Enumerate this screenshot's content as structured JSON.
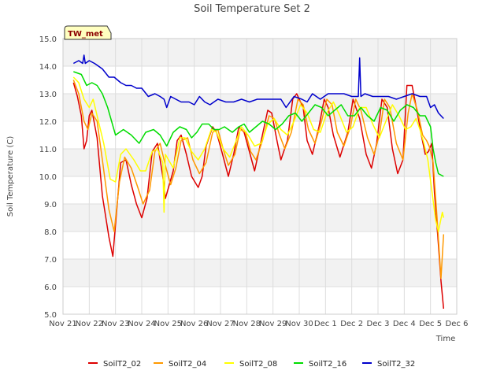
{
  "chart_data": {
    "type": "line",
    "title": "Soil Temperature Set 2",
    "xlabel": "Time",
    "ylabel": "Soil Temperature (C)",
    "badge": "TW_met",
    "ylim": [
      5.0,
      15.0
    ],
    "yticks": [
      "5.0",
      "6.0",
      "7.0",
      "8.0",
      "9.0",
      "10.0",
      "11.0",
      "12.0",
      "13.0",
      "14.0",
      "15.0"
    ],
    "xlim": [
      0,
      15
    ],
    "xticks": [
      "Nov 21",
      "Nov 22",
      "Nov 23",
      "Nov 24",
      "Nov 25",
      "Nov 26",
      "Nov 27",
      "Nov 28",
      "Nov 29",
      "Nov 30",
      "Dec 1",
      "Dec 2",
      "Dec 3",
      "Dec 4",
      "Dec 5",
      "Dec 6"
    ],
    "grid": true,
    "legend_position": "bottom",
    "series": [
      {
        "name": "SoilT2_02",
        "color": "#dd0000",
        "x": [
          0.4,
          0.55,
          0.7,
          0.8,
          0.9,
          1.0,
          1.1,
          1.3,
          1.5,
          1.75,
          1.9,
          2.05,
          2.2,
          2.4,
          2.6,
          2.8,
          3.0,
          3.2,
          3.4,
          3.6,
          3.8,
          3.9,
          4.2,
          4.35,
          4.5,
          4.7,
          4.9,
          5.15,
          5.3,
          5.45,
          5.7,
          5.85,
          6.05,
          6.3,
          6.5,
          6.7,
          6.9,
          7.1,
          7.3,
          7.55,
          7.8,
          7.95,
          8.15,
          8.3,
          8.55,
          8.75,
          8.9,
          9.15,
          9.3,
          9.5,
          9.75,
          9.95,
          10.1,
          10.3,
          10.55,
          10.85,
          11.05,
          11.3,
          11.55,
          11.75,
          11.95,
          12.15,
          12.35,
          12.55,
          12.75,
          12.95,
          13.1,
          13.3,
          13.5,
          13.65,
          13.8,
          13.92,
          14.05,
          14.15,
          14.28,
          14.4,
          14.5
        ],
        "y": [
          13.4,
          12.9,
          12.2,
          11.0,
          11.3,
          12.2,
          12.4,
          11.4,
          9.3,
          7.8,
          7.1,
          8.8,
          10.5,
          10.6,
          9.7,
          9.0,
          8.5,
          9.2,
          10.9,
          11.2,
          10.0,
          9.2,
          10.2,
          11.3,
          11.5,
          10.8,
          10.0,
          9.6,
          10.0,
          11.1,
          11.8,
          11.6,
          10.9,
          10.0,
          10.8,
          11.8,
          11.6,
          10.9,
          10.2,
          11.3,
          12.4,
          12.3,
          11.3,
          10.6,
          11.3,
          12.8,
          13.0,
          12.5,
          11.3,
          10.8,
          11.8,
          12.8,
          12.5,
          11.5,
          10.7,
          11.6,
          12.8,
          12.1,
          10.8,
          10.3,
          11.2,
          12.8,
          12.5,
          11.0,
          10.1,
          10.6,
          13.3,
          13.3,
          12.3,
          11.5,
          10.8,
          10.9,
          11.2,
          9.4,
          7.8,
          6.2,
          5.2
        ]
      },
      {
        "name": "SoilT2_04",
        "color": "#ff9900",
        "x": [
          0.4,
          0.6,
          0.8,
          0.95,
          1.1,
          1.3,
          1.5,
          1.75,
          1.95,
          2.15,
          2.35,
          2.6,
          2.85,
          3.05,
          3.3,
          3.5,
          3.7,
          3.9,
          4.1,
          4.3,
          4.5,
          4.75,
          4.95,
          5.2,
          5.45,
          5.7,
          5.9,
          6.1,
          6.3,
          6.55,
          6.75,
          6.95,
          7.15,
          7.35,
          7.6,
          7.85,
          8.05,
          8.25,
          8.45,
          8.7,
          8.95,
          9.15,
          9.35,
          9.6,
          9.85,
          10.05,
          10.25,
          10.45,
          10.7,
          10.95,
          11.15,
          11.35,
          11.6,
          11.85,
          12.05,
          12.25,
          12.45,
          12.7,
          12.95,
          13.15,
          13.3,
          13.5,
          13.7,
          13.85,
          13.95,
          14.1,
          14.25,
          14.4,
          14.5
        ],
        "y": [
          13.5,
          13.0,
          12.0,
          11.7,
          12.3,
          12.0,
          10.6,
          8.8,
          8.0,
          9.8,
          10.7,
          10.3,
          9.6,
          9.0,
          9.5,
          10.9,
          11.2,
          10.4,
          9.7,
          10.3,
          11.3,
          11.4,
          10.6,
          10.1,
          10.5,
          11.6,
          11.7,
          11.0,
          10.4,
          10.8,
          11.7,
          11.6,
          10.9,
          10.6,
          11.3,
          12.2,
          12.1,
          11.5,
          11.0,
          11.6,
          12.8,
          12.6,
          11.7,
          11.2,
          12.0,
          12.8,
          12.6,
          11.6,
          11.1,
          11.8,
          12.8,
          12.4,
          11.4,
          10.8,
          11.5,
          12.8,
          12.5,
          11.2,
          10.6,
          12.3,
          13.0,
          12.4,
          11.5,
          11.3,
          11.1,
          10.5,
          8.5,
          6.3,
          7.9
        ]
      },
      {
        "name": "SoilT2_08",
        "color": "#ffff00",
        "x": [
          0.4,
          0.6,
          0.8,
          1.0,
          1.15,
          1.3,
          1.55,
          1.8,
          2.0,
          2.2,
          2.4,
          2.7,
          2.95,
          3.15,
          3.4,
          3.6,
          3.8,
          3.85,
          3.9,
          4.2,
          4.45,
          4.65,
          4.9,
          5.15,
          5.4,
          5.65,
          5.85,
          6.1,
          6.35,
          6.6,
          6.8,
          7.05,
          7.3,
          7.55,
          7.8,
          8.05,
          8.3,
          8.55,
          8.8,
          9.05,
          9.3,
          9.55,
          9.8,
          10.05,
          10.3,
          10.55,
          10.8,
          11.05,
          11.3,
          11.55,
          11.8,
          12.05,
          12.3,
          12.55,
          12.8,
          13.05,
          13.25,
          13.45,
          13.6,
          13.75,
          13.9,
          14.05,
          14.2,
          14.3,
          14.45,
          14.5
        ],
        "y": [
          13.6,
          13.4,
          12.8,
          12.5,
          12.8,
          12.2,
          11.2,
          9.9,
          9.8,
          10.8,
          11.0,
          10.6,
          10.2,
          10.2,
          10.9,
          11.0,
          10.5,
          8.7,
          10.8,
          10.3,
          11.4,
          11.4,
          10.9,
          10.6,
          11.0,
          11.7,
          11.6,
          11.0,
          10.7,
          11.3,
          11.8,
          11.5,
          11.1,
          11.2,
          11.9,
          12.1,
          11.7,
          11.5,
          12.0,
          12.6,
          12.3,
          11.7,
          11.6,
          12.3,
          12.7,
          12.2,
          11.6,
          11.8,
          12.5,
          12.5,
          11.9,
          11.4,
          12.0,
          12.6,
          12.2,
          11.7,
          11.8,
          12.1,
          11.7,
          11.2,
          10.6,
          9.5,
          8.4,
          8.0,
          8.7,
          8.5
        ]
      },
      {
        "name": "SoilT2_16",
        "color": "#00dd00",
        "x": [
          0.4,
          0.7,
          0.9,
          1.1,
          1.3,
          1.5,
          1.7,
          1.85,
          2.0,
          2.3,
          2.6,
          2.9,
          3.15,
          3.45,
          3.7,
          3.95,
          4.2,
          4.45,
          4.7,
          4.9,
          5.1,
          5.3,
          5.55,
          5.75,
          5.95,
          6.15,
          6.45,
          6.7,
          6.9,
          7.1,
          7.35,
          7.6,
          7.85,
          8.1,
          8.35,
          8.6,
          8.85,
          9.1,
          9.35,
          9.6,
          9.85,
          10.1,
          10.35,
          10.6,
          10.85,
          11.1,
          11.35,
          11.6,
          11.85,
          12.1,
          12.35,
          12.6,
          12.85,
          13.1,
          13.35,
          13.6,
          13.8,
          14.0,
          14.1,
          14.2,
          14.3,
          14.5
        ],
        "y": [
          13.8,
          13.7,
          13.3,
          13.4,
          13.3,
          13.0,
          12.5,
          12.0,
          11.5,
          11.7,
          11.5,
          11.2,
          11.6,
          11.7,
          11.5,
          11.1,
          11.6,
          11.8,
          11.7,
          11.4,
          11.6,
          11.9,
          11.9,
          11.7,
          11.7,
          11.8,
          11.6,
          11.8,
          11.9,
          11.6,
          11.8,
          12.0,
          11.9,
          11.7,
          11.9,
          12.2,
          12.3,
          12.0,
          12.3,
          12.6,
          12.5,
          12.2,
          12.4,
          12.6,
          12.2,
          12.2,
          12.5,
          12.2,
          12.0,
          12.5,
          12.4,
          12.0,
          12.4,
          12.6,
          12.5,
          12.2,
          12.2,
          11.8,
          11.0,
          10.5,
          10.1,
          10.0
        ]
      },
      {
        "name": "SoilT2_32",
        "color": "#0000cc",
        "x": [
          0.4,
          0.6,
          0.75,
          0.8,
          0.85,
          1.0,
          1.2,
          1.5,
          1.75,
          1.95,
          2.2,
          2.4,
          2.6,
          2.8,
          3.0,
          3.25,
          3.5,
          3.7,
          3.85,
          3.95,
          4.1,
          4.3,
          4.5,
          4.8,
          5.0,
          5.2,
          5.4,
          5.6,
          5.9,
          6.2,
          6.5,
          6.8,
          7.1,
          7.4,
          7.7,
          8.0,
          8.3,
          8.5,
          8.8,
          9.1,
          9.3,
          9.5,
          9.8,
          10.1,
          10.4,
          10.7,
          11.0,
          11.25,
          11.3,
          11.35,
          11.5,
          11.8,
          12.1,
          12.4,
          12.7,
          13.0,
          13.3,
          13.6,
          13.85,
          14.0,
          14.15,
          14.3,
          14.5
        ],
        "y": [
          14.1,
          14.2,
          14.1,
          14.4,
          14.1,
          14.2,
          14.1,
          13.9,
          13.6,
          13.6,
          13.4,
          13.3,
          13.3,
          13.2,
          13.2,
          12.9,
          13.0,
          12.9,
          12.8,
          12.5,
          12.9,
          12.8,
          12.7,
          12.7,
          12.6,
          12.9,
          12.7,
          12.6,
          12.8,
          12.7,
          12.7,
          12.8,
          12.7,
          12.8,
          12.8,
          12.8,
          12.8,
          12.5,
          12.9,
          12.8,
          12.7,
          13.0,
          12.8,
          13.0,
          13.0,
          13.0,
          12.9,
          12.9,
          14.3,
          12.9,
          13.0,
          12.9,
          12.9,
          12.9,
          12.8,
          12.9,
          13.0,
          12.9,
          12.9,
          12.5,
          12.6,
          12.3,
          12.1
        ]
      }
    ]
  }
}
